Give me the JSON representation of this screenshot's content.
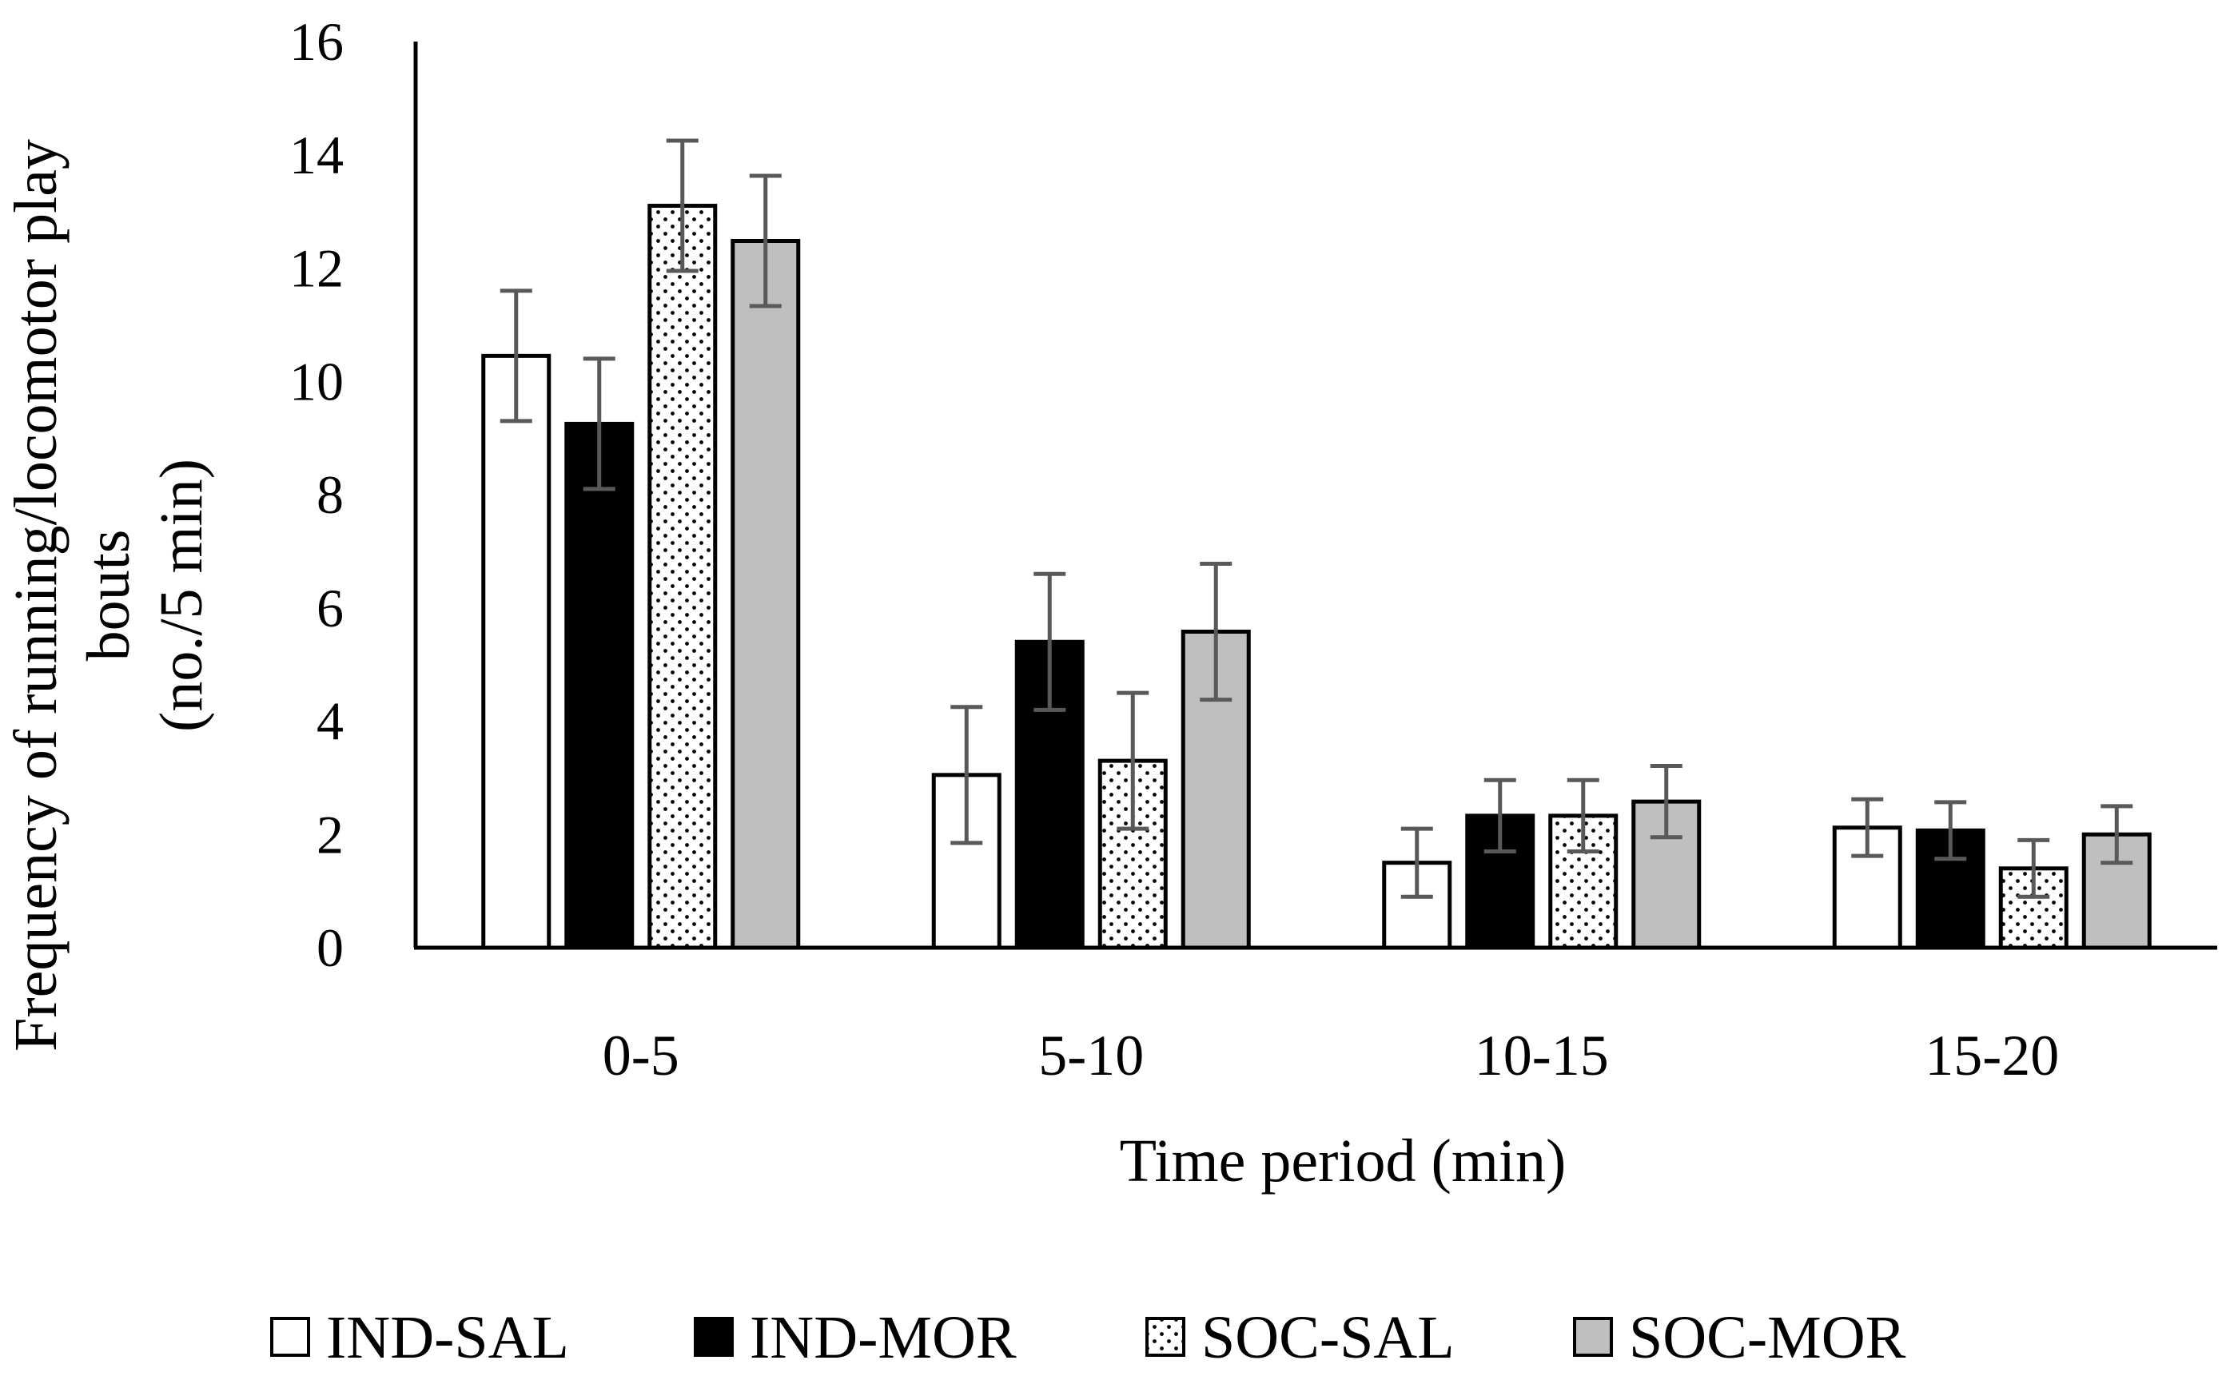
{
  "chart_data": {
    "type": "bar",
    "title": "",
    "xlabel": "Time period (min)",
    "ylabel_lines": [
      "Frequency of running/locomotor play",
      "bouts",
      "(no./5 min)"
    ],
    "categories": [
      "0-5",
      "5-10",
      "10-15",
      "15-20"
    ],
    "ylim": [
      0,
      16
    ],
    "yticks": [
      0,
      2,
      4,
      6,
      8,
      10,
      12,
      14,
      16
    ],
    "grid": false,
    "legend_position": "bottom",
    "series": [
      {
        "name": "IND-SAL",
        "values": [
          10.45,
          3.05,
          1.5,
          2.12
        ],
        "errors": [
          1.15,
          1.2,
          0.6,
          0.5
        ],
        "fill": "#ffffff",
        "pattern": "none"
      },
      {
        "name": "IND-MOR",
        "values": [
          9.25,
          5.4,
          2.33,
          2.07
        ],
        "errors": [
          1.15,
          1.2,
          0.63,
          0.5
        ],
        "fill": "#000000",
        "pattern": "none"
      },
      {
        "name": "SOC-SAL",
        "values": [
          13.1,
          3.3,
          2.33,
          1.4
        ],
        "errors": [
          1.15,
          1.2,
          0.63,
          0.5
        ],
        "fill": "#ffffff",
        "pattern": "dots"
      },
      {
        "name": "SOC-MOR",
        "values": [
          12.48,
          5.58,
          2.58,
          2.0
        ],
        "errors": [
          1.15,
          1.2,
          0.63,
          0.5
        ],
        "fill": "#bfbfbf",
        "pattern": "none"
      }
    ],
    "colors": {
      "outline": "#000000",
      "errorbar": "#595959",
      "axis": "#000000"
    }
  }
}
